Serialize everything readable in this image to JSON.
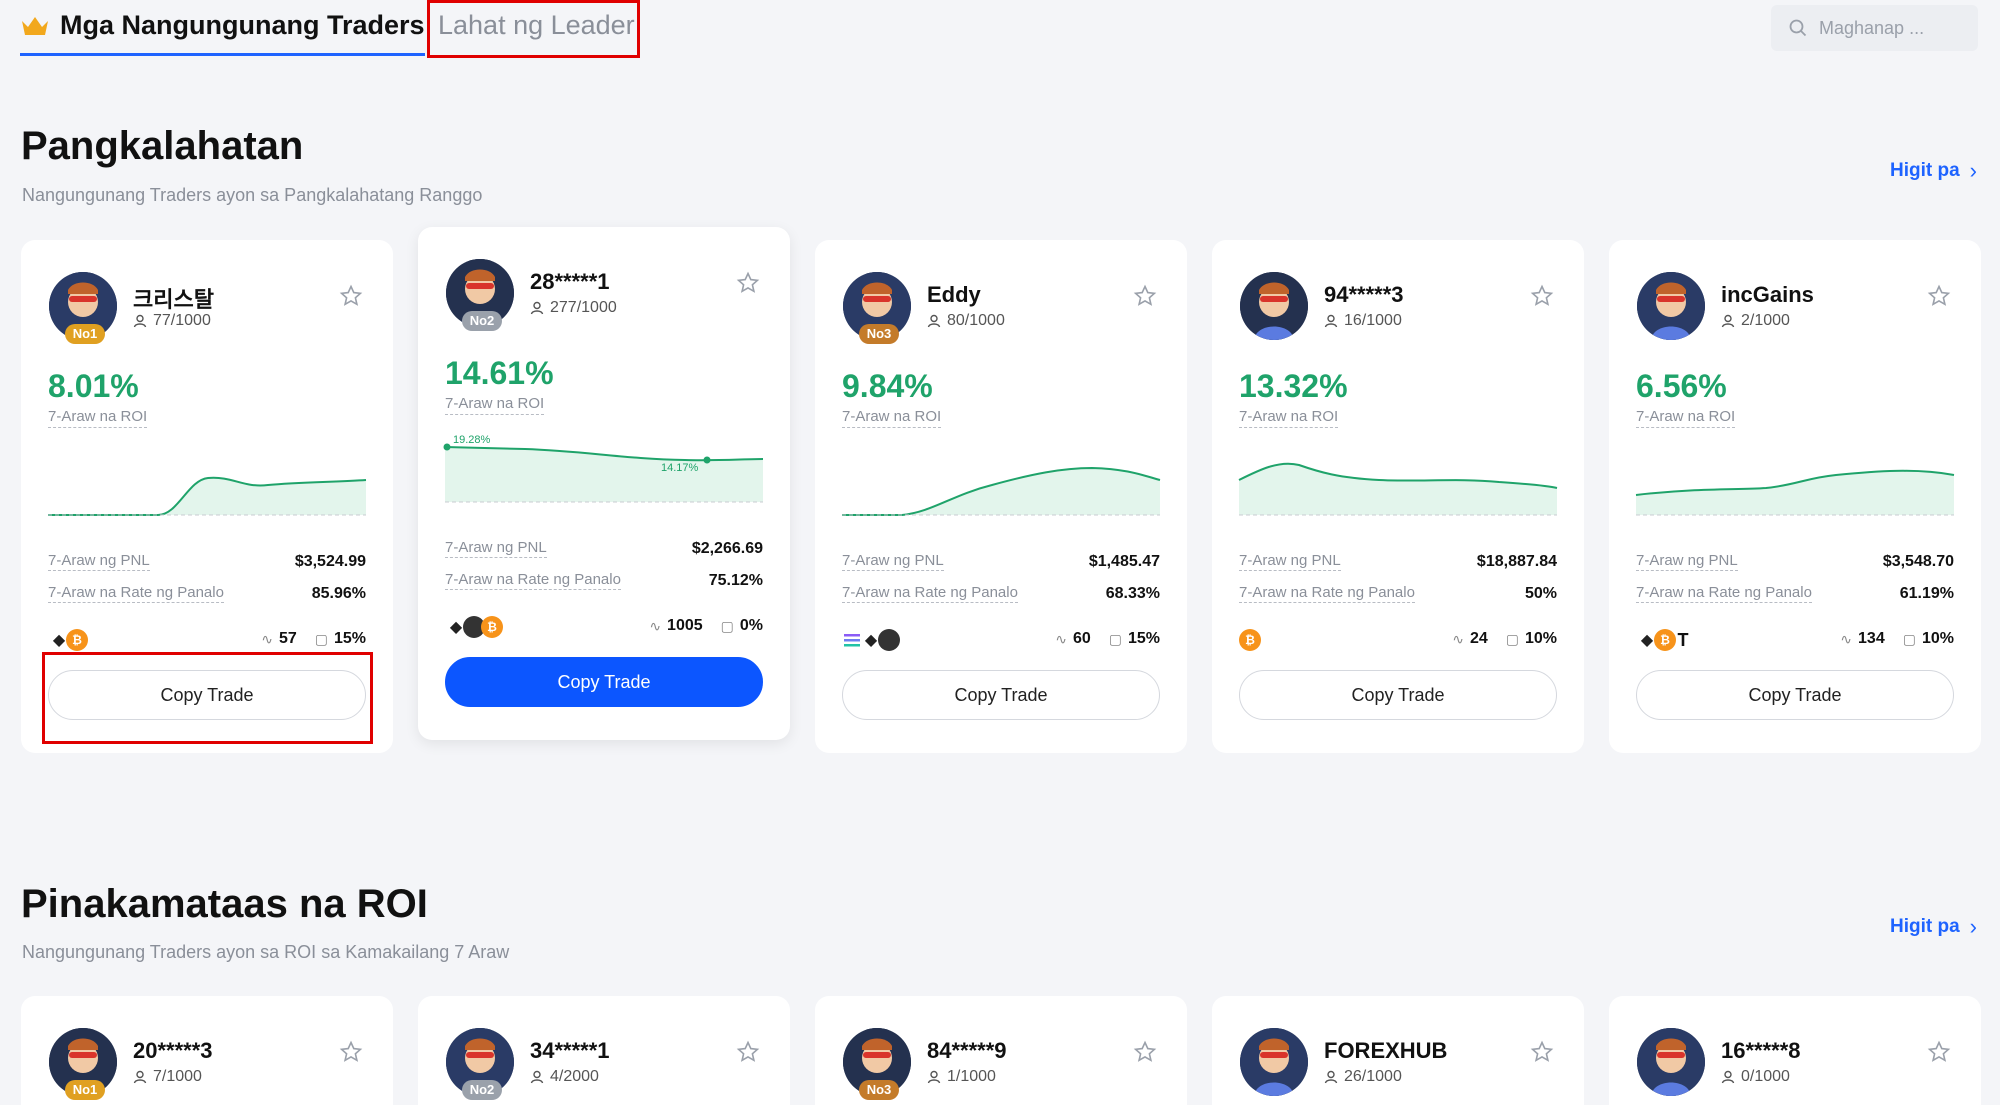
{
  "tabs": {
    "active": "Mga Nangungunang Traders",
    "inactive": "Lahat ng Leader"
  },
  "search": {
    "placeholder": "Maghanap ..."
  },
  "section1": {
    "title": "Pangkalahatan",
    "subtitle": "Nangungunang Traders ayon sa Pangkalahatang Ranggo",
    "more": "Higit pa"
  },
  "section2": {
    "title": "Pinakamataas na ROI",
    "subtitle": "Nangungunang Traders ayon sa ROI sa Kamakailang 7 Araw",
    "more": "Higit pa"
  },
  "labels": {
    "roi": "7-Araw na ROI",
    "pnl": "7-Araw ng PNL",
    "winrate": "7-Araw na Rate ng Panalo",
    "copy": "Copy Trade"
  },
  "cards": [
    {
      "name": "크리스탈",
      "followers": "77/1000",
      "rank": "No1",
      "roi": "8.01%",
      "pnl": "$3,524.99",
      "winrate": "85.96%",
      "trades": "57",
      "share": "15%",
      "coins": [
        "eth",
        "btc"
      ]
    },
    {
      "name": "28*****1",
      "followers": "277/1000",
      "rank": "No2",
      "roi": "14.61%",
      "pnl": "$2,266.69",
      "winrate": "75.12%",
      "trades": "1005",
      "share": "0%",
      "coins": [
        "eth",
        "dark",
        "btc"
      ],
      "spark_high": "19.28%",
      "spark_low": "14.17%"
    },
    {
      "name": "Eddy",
      "followers": "80/1000",
      "rank": "No3",
      "roi": "9.84%",
      "pnl": "$1,485.47",
      "winrate": "68.33%",
      "trades": "60",
      "share": "15%",
      "coins": [
        "sol",
        "eth",
        "dark"
      ]
    },
    {
      "name": "94*****3",
      "followers": "16/1000",
      "rank": "",
      "roi": "13.32%",
      "pnl": "$18,887.84",
      "winrate": "50%",
      "trades": "24",
      "share": "10%",
      "coins": [
        "btc"
      ]
    },
    {
      "name": "incGains",
      "followers": "2/1000",
      "rank": "",
      "roi": "6.56%",
      "pnl": "$3,548.70",
      "winrate": "61.19%",
      "trades": "134",
      "share": "10%",
      "coins": [
        "eth",
        "btc",
        "t"
      ]
    }
  ],
  "cards2": [
    {
      "name": "20*****3",
      "followers": "7/1000",
      "rank": "No1"
    },
    {
      "name": "34*****1",
      "followers": "4/2000",
      "rank": "No2"
    },
    {
      "name": "84*****9",
      "followers": "1/1000",
      "rank": "No3"
    },
    {
      "name": "FOREXHUB",
      "followers": "26/1000",
      "rank": ""
    },
    {
      "name": "16*****8",
      "followers": "0/1000",
      "rank": ""
    }
  ],
  "colors": {
    "accent": "#1e63ff",
    "positive": "#1fa36a",
    "button_primary": "#0c56ff",
    "highlight": "#e00000"
  }
}
